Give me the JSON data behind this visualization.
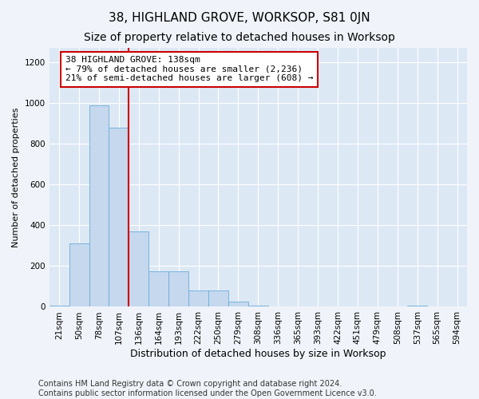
{
  "title": "38, HIGHLAND GROVE, WORKSOP, S81 0JN",
  "subtitle": "Size of property relative to detached houses in Worksop",
  "xlabel": "Distribution of detached houses by size in Worksop",
  "ylabel": "Number of detached properties",
  "bin_labels": [
    "21sqm",
    "50sqm",
    "78sqm",
    "107sqm",
    "136sqm",
    "164sqm",
    "193sqm",
    "222sqm",
    "250sqm",
    "279sqm",
    "308sqm",
    "336sqm",
    "365sqm",
    "393sqm",
    "422sqm",
    "451sqm",
    "479sqm",
    "508sqm",
    "537sqm",
    "565sqm",
    "594sqm"
  ],
  "bar_heights": [
    5,
    310,
    990,
    880,
    370,
    175,
    175,
    80,
    80,
    25,
    5,
    0,
    0,
    0,
    0,
    0,
    0,
    0,
    5,
    0,
    0
  ],
  "bar_color": "#c5d8ee",
  "bar_edge_color": "#6aacd6",
  "property_line_x": 4,
  "property_line_label": "38 HIGHLAND GROVE: 138sqm",
  "annotation_line1": "← 79% of detached houses are smaller (2,236)",
  "annotation_line2": "21% of semi-detached houses are larger (608) →",
  "annotation_box_color": "#ffffff",
  "annotation_box_edge": "#cc0000",
  "vline_color": "#cc0000",
  "ylim": [
    0,
    1270
  ],
  "yticks": [
    0,
    200,
    400,
    600,
    800,
    1000,
    1200
  ],
  "footnote1": "Contains HM Land Registry data © Crown copyright and database right 2024.",
  "footnote2": "Contains public sector information licensed under the Open Government Licence v3.0.",
  "fig_facecolor": "#f0f4fa",
  "plot_facecolor": "#dde8f5",
  "title_fontsize": 11,
  "subtitle_fontsize": 10,
  "xlabel_fontsize": 9,
  "ylabel_fontsize": 8,
  "tick_fontsize": 7.5,
  "footnote_fontsize": 7,
  "annotation_fontsize": 8
}
